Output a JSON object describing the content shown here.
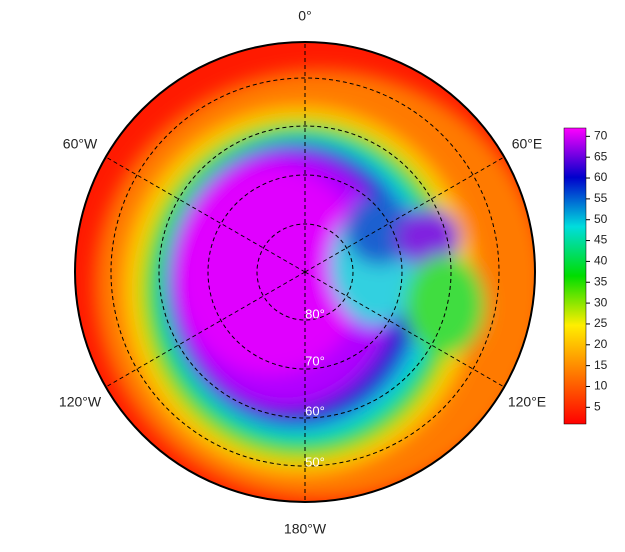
{
  "map": {
    "meridian_labels": [
      "0°",
      "60°E",
      "120°E",
      "180°W",
      "120°W",
      "60°W"
    ],
    "latitude_labels": [
      "80°",
      "70°",
      "60°",
      "50°"
    ],
    "colorbar": {
      "lim": [
        1,
        72
      ],
      "ticks": [
        5,
        10,
        15,
        20,
        25,
        30,
        35,
        40,
        45,
        50,
        55,
        60,
        65,
        70
      ],
      "colors": [
        "#ff0000",
        "#ff7700",
        "#ffee00",
        "#00dd00",
        "#00dddd",
        "#0000cc",
        "#ff00ff"
      ]
    }
  }
}
